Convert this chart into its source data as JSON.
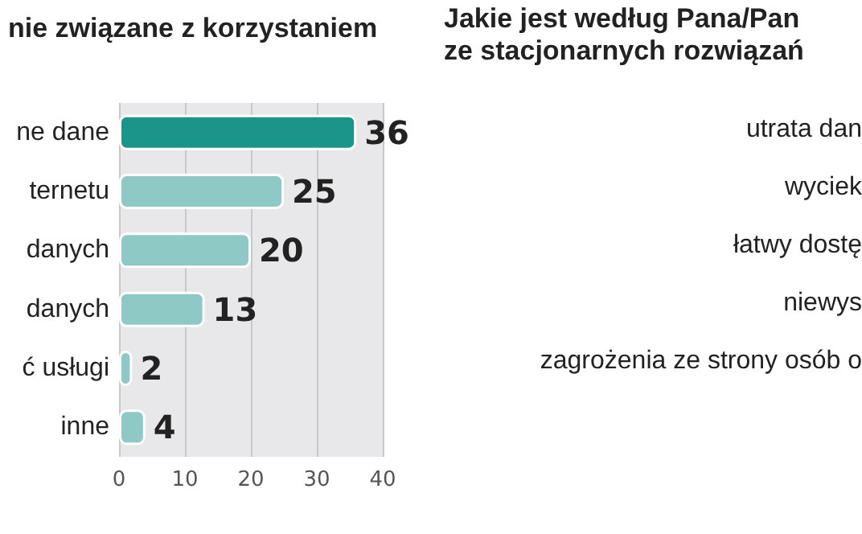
{
  "chart_data": [
    {
      "type": "bar",
      "orientation": "horizontal",
      "title": "nie związane z korzystaniem",
      "categories": [
        "ne dane",
        "ternetu",
        "danych",
        "danych",
        "ć usługi",
        "inne"
      ],
      "values": [
        36,
        25,
        20,
        13,
        2,
        4
      ],
      "colors": [
        "#1b9589",
        "#8ec9c5",
        "#8ec9c5",
        "#8ec9c5",
        "#8ec9c5",
        "#8ec9c5"
      ],
      "xlim": [
        0,
        40
      ],
      "xticks": [
        0,
        10,
        20,
        30,
        40
      ],
      "grid": "x",
      "data_labels": true
    },
    {
      "type": "other",
      "title": "Jakie jest według Pana/Pan\nze stacjonarnych rozwiązań",
      "annotations": [
        "utrata dan",
        "wyciek",
        "łatwy dostę",
        "niewys",
        "zagrożenia ze strony osób o"
      ]
    }
  ]
}
